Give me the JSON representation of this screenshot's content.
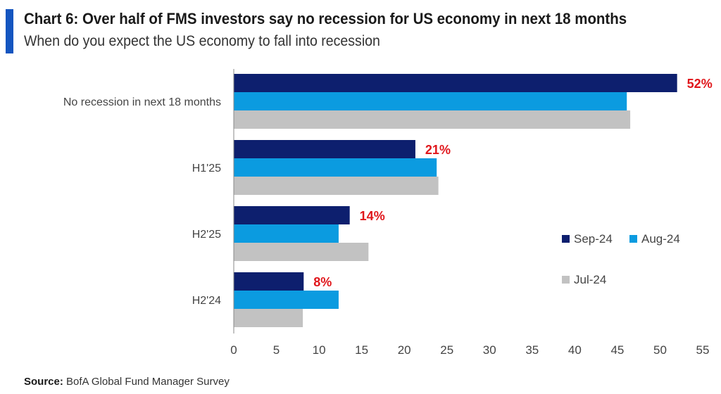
{
  "header": {
    "title": "Chart 6: Over half of FMS investors say no recession for US economy in next 18 months",
    "subtitle": "When do you expect the US economy to fall into recession"
  },
  "footer": {
    "source_label": "Source:",
    "source_text": " BofA Global Fund Manager Survey"
  },
  "colors": {
    "accent": "#1455c0",
    "sep24": "#0d1f6e",
    "aug24": "#0b9be0",
    "jul24": "#c2c2c2",
    "label_red": "#e0161b"
  },
  "chart_data": {
    "type": "bar",
    "orientation": "horizontal",
    "categories": [
      "No recession in next 18 months",
      "H1'25",
      "H2'25",
      "H2'24"
    ],
    "series": [
      {
        "name": "Sep-24",
        "values": [
          52,
          21.3,
          13.6,
          8.2
        ],
        "labels": [
          "52%",
          "21%",
          "14%",
          "8%"
        ]
      },
      {
        "name": "Aug-24",
        "values": [
          46.1,
          23.8,
          12.3,
          12.3
        ]
      },
      {
        "name": "Jul-24",
        "values": [
          46.5,
          24,
          15.8,
          8.1
        ]
      }
    ],
    "xlim": [
      0,
      55
    ],
    "xticks": [
      0,
      5,
      10,
      15,
      20,
      25,
      30,
      35,
      40,
      45,
      50,
      55
    ],
    "grid": false,
    "legend_position": "right"
  }
}
